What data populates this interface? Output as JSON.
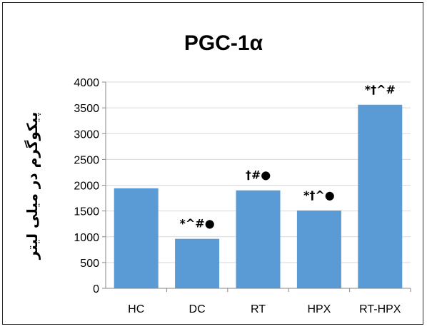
{
  "chart_data": {
    "type": "bar",
    "title": "PGC-1α",
    "ylabel": "پیکوگرم در میلی لیتر",
    "xlabel": "",
    "categories": [
      "HC",
      "DC",
      "RT",
      "HPX",
      "RT-HPX"
    ],
    "values": [
      1940,
      960,
      1900,
      1510,
      3560
    ],
    "annotations": [
      "",
      "*^#●",
      "†#●",
      "*†^●",
      "*†^#"
    ],
    "ylim": [
      0,
      4000
    ],
    "yticks": [
      0,
      500,
      1000,
      1500,
      2000,
      2500,
      3000,
      3500,
      4000
    ],
    "grid": true,
    "legend": "none",
    "bar_color": "#5b9bd5",
    "grid_color": "#d9d9d9"
  }
}
